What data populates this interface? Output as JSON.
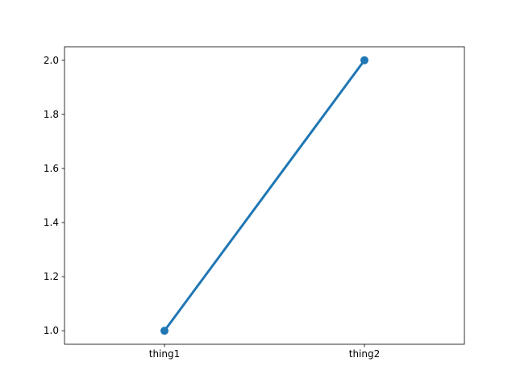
{
  "chart_data": {
    "type": "line",
    "categories": [
      "thing1",
      "thing2"
    ],
    "series": [
      {
        "values": [
          1.0,
          2.0
        ]
      }
    ],
    "y_ticks": [
      1.0,
      1.2,
      1.4,
      1.6,
      1.8,
      2.0
    ],
    "y_tick_labels": [
      "1.0",
      "1.2",
      "1.4",
      "1.6",
      "1.8",
      "2.0"
    ],
    "ylim": [
      0.95,
      2.05
    ],
    "title": "",
    "xlabel": "",
    "ylabel": "",
    "grid": false,
    "legend": "none",
    "colors": {
      "series": "#1f77b4",
      "axes": "#000000",
      "background": "#ffffff"
    }
  }
}
